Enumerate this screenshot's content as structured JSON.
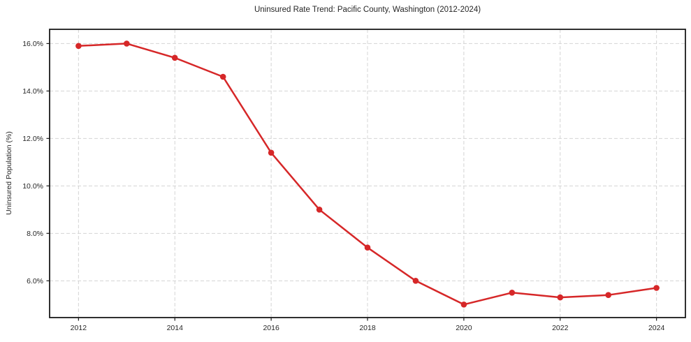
{
  "page": {
    "background": "#ffffff"
  },
  "chart_data": {
    "type": "line",
    "title": "Uninsured Rate Trend: Pacific County, Washington (2012-2024)",
    "xlabel": "",
    "ylabel": "Uninsured Population (%)",
    "x": [
      2012,
      2013,
      2014,
      2015,
      2016,
      2017,
      2018,
      2019,
      2020,
      2021,
      2022,
      2023,
      2024
    ],
    "values": [
      15.9,
      16.0,
      15.4,
      14.6,
      11.4,
      9.0,
      7.4,
      6.0,
      5.0,
      5.5,
      5.3,
      5.4,
      5.7
    ],
    "xlim": [
      2011.4,
      2024.6
    ],
    "ylim": [
      4.45,
      16.6
    ],
    "xticks": [
      2012,
      2014,
      2016,
      2018,
      2020,
      2022,
      2024
    ],
    "xtick_labels": [
      "2012",
      "2014",
      "2016",
      "2018",
      "2020",
      "2022",
      "2024"
    ],
    "yticks": [
      6,
      8,
      10,
      12,
      14,
      16
    ],
    "ytick_labels": [
      "6.0%",
      "8.0%",
      "10.0%",
      "12.0%",
      "14.0%",
      "16.0%"
    ],
    "grid": true,
    "grid_style": "dashed",
    "legend": false,
    "line_color": "#d62728",
    "marker_color": "#d62728",
    "grid_color": "#d4d4d4",
    "frame_color": "#1a1a1a",
    "text_color": "#262626"
  }
}
